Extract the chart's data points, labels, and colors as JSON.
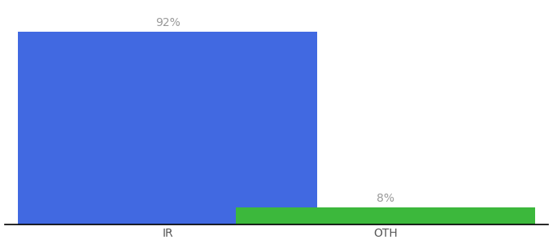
{
  "categories": [
    "IR",
    "OTH"
  ],
  "values": [
    92,
    8
  ],
  "bar_colors": [
    "#4169E1",
    "#3CB83C"
  ],
  "label_texts": [
    "92%",
    "8%"
  ],
  "background_color": "#ffffff",
  "text_color": "#999999",
  "ylim": [
    0,
    105
  ],
  "bar_width": 0.55,
  "label_fontsize": 10,
  "tick_fontsize": 10,
  "tick_color": "#555555",
  "x_positions": [
    0.3,
    0.7
  ],
  "xlim": [
    0.0,
    1.0
  ]
}
